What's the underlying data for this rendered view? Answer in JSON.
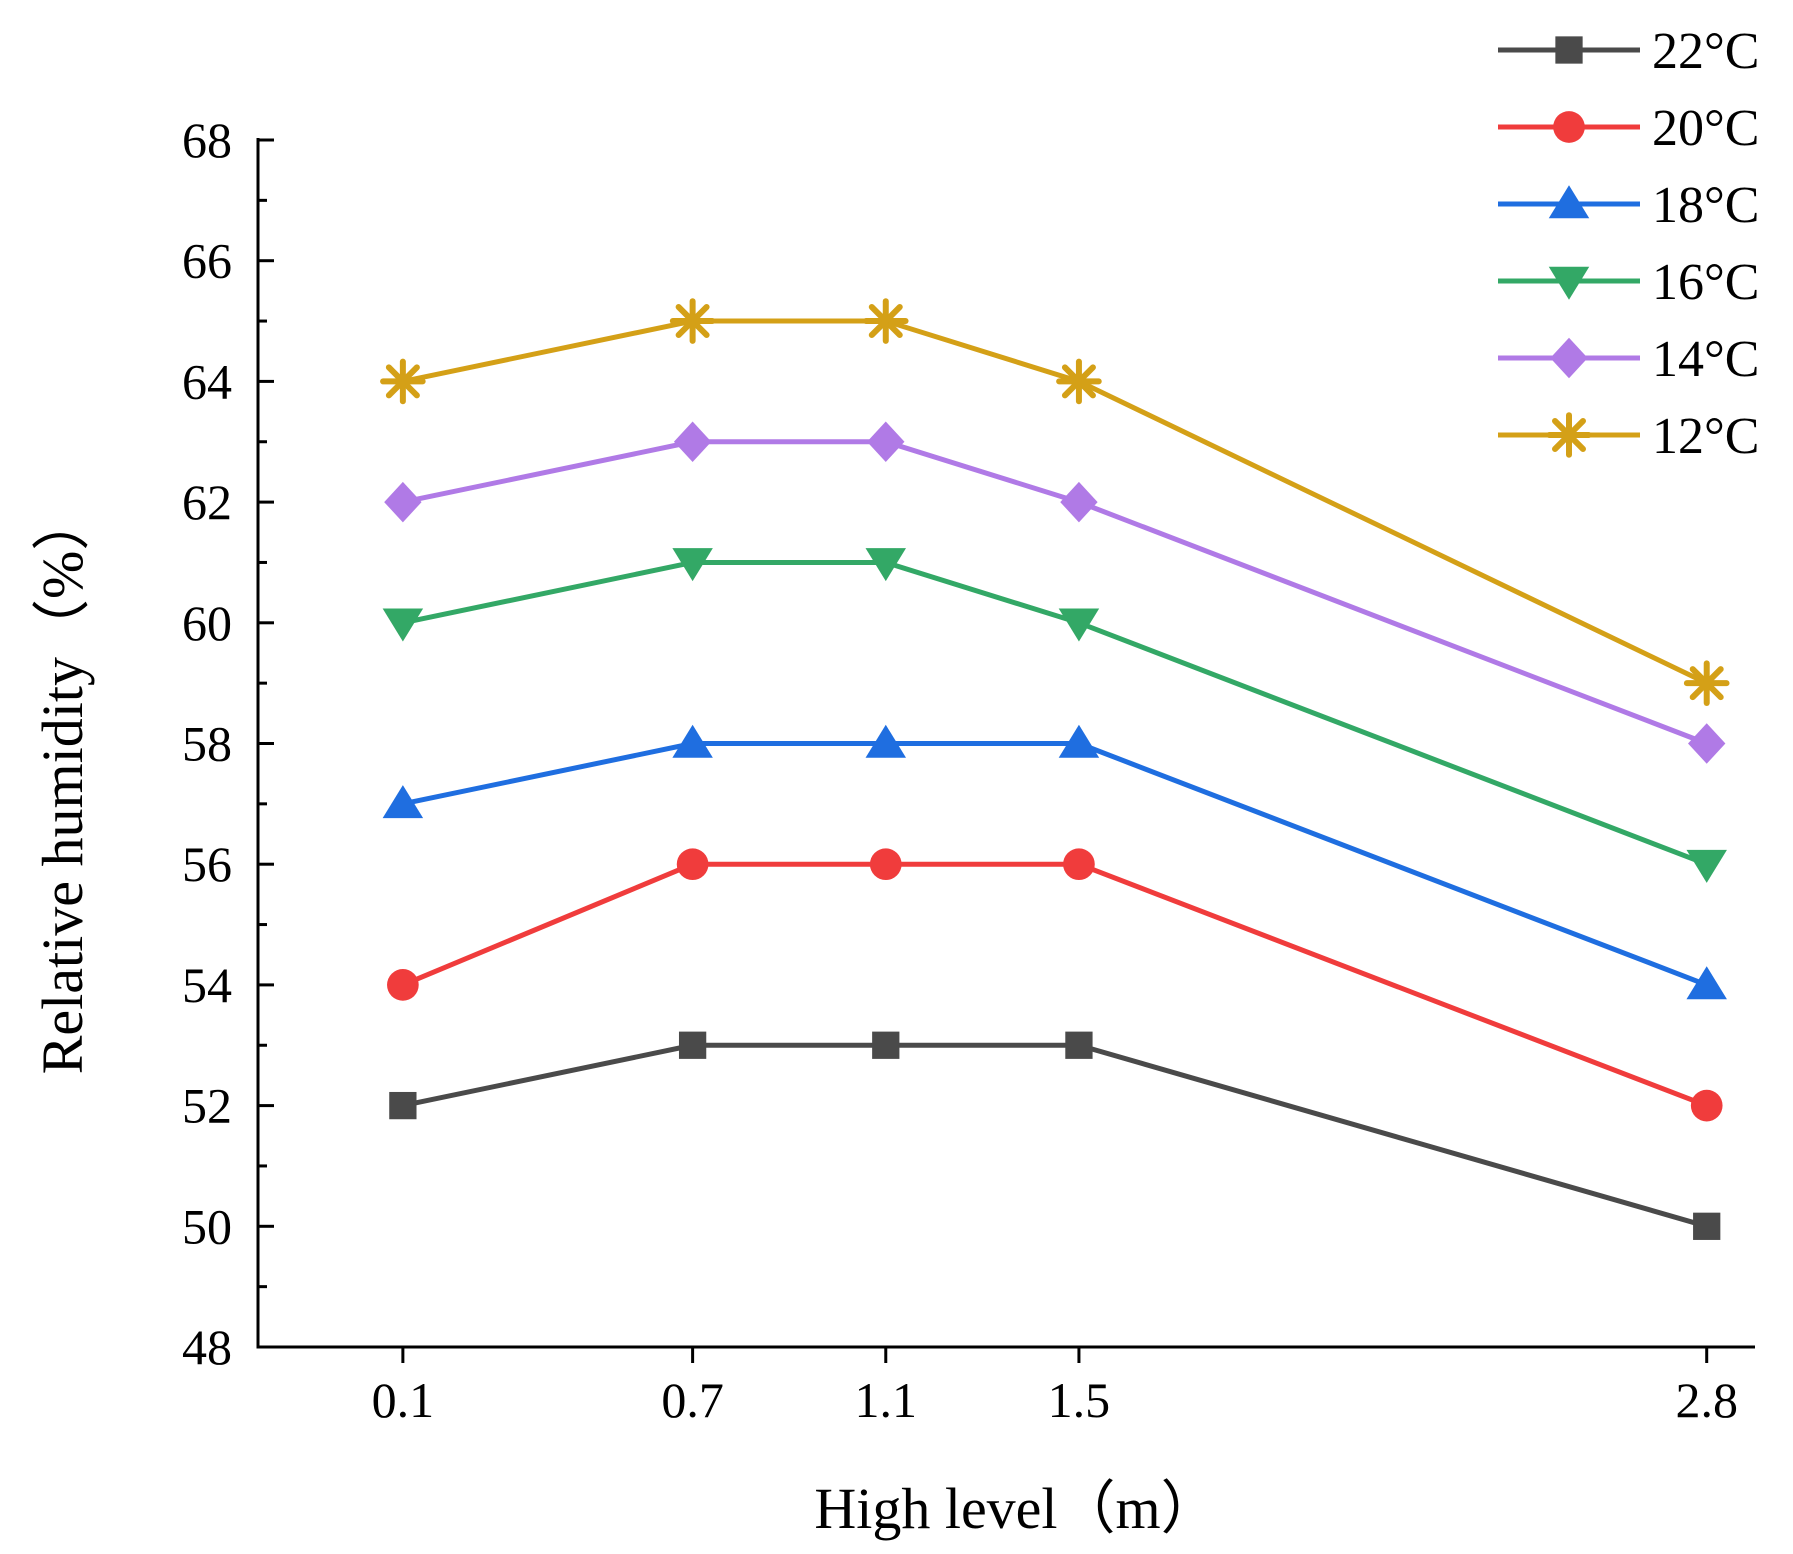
{
  "chart_data": {
    "type": "line",
    "xlabel": "High level（m）",
    "ylabel": "Relative humidity（%）",
    "x": [
      0.1,
      0.7,
      1.1,
      1.5,
      2.8
    ],
    "x_tick_labels": [
      "0.1",
      "0.7",
      "1.1",
      "1.5",
      "2.8"
    ],
    "xlim": [
      -0.2,
      2.9
    ],
    "ylim": [
      48,
      68
    ],
    "y_ticks": [
      48,
      50,
      52,
      54,
      56,
      58,
      60,
      62,
      64,
      66,
      68
    ],
    "y_tick_labels": [
      "48",
      "50",
      "52",
      "54",
      "56",
      "58",
      "60",
      "62",
      "64",
      "66",
      "68"
    ],
    "grid": false,
    "legend_position": "top-right",
    "series": [
      {
        "name": "22°C",
        "color": "#4a4a4a",
        "marker": "square",
        "values": [
          52,
          53,
          53,
          53,
          50
        ]
      },
      {
        "name": "20°C",
        "color": "#f03c3c",
        "marker": "circle",
        "values": [
          54,
          56,
          56,
          56,
          52
        ]
      },
      {
        "name": "18°C",
        "color": "#1f6ee0",
        "marker": "triangle-up",
        "values": [
          57,
          58,
          58,
          58,
          54
        ]
      },
      {
        "name": "16°C",
        "color": "#33a866",
        "marker": "triangle-down",
        "values": [
          60,
          61,
          61,
          60,
          56
        ]
      },
      {
        "name": "14°C",
        "color": "#b07ae6",
        "marker": "diamond",
        "values": [
          62,
          63,
          63,
          62,
          58
        ]
      },
      {
        "name": "12°C",
        "color": "#d4a017",
        "marker": "asterisk",
        "values": [
          64,
          65,
          65,
          64,
          59
        ]
      }
    ]
  }
}
